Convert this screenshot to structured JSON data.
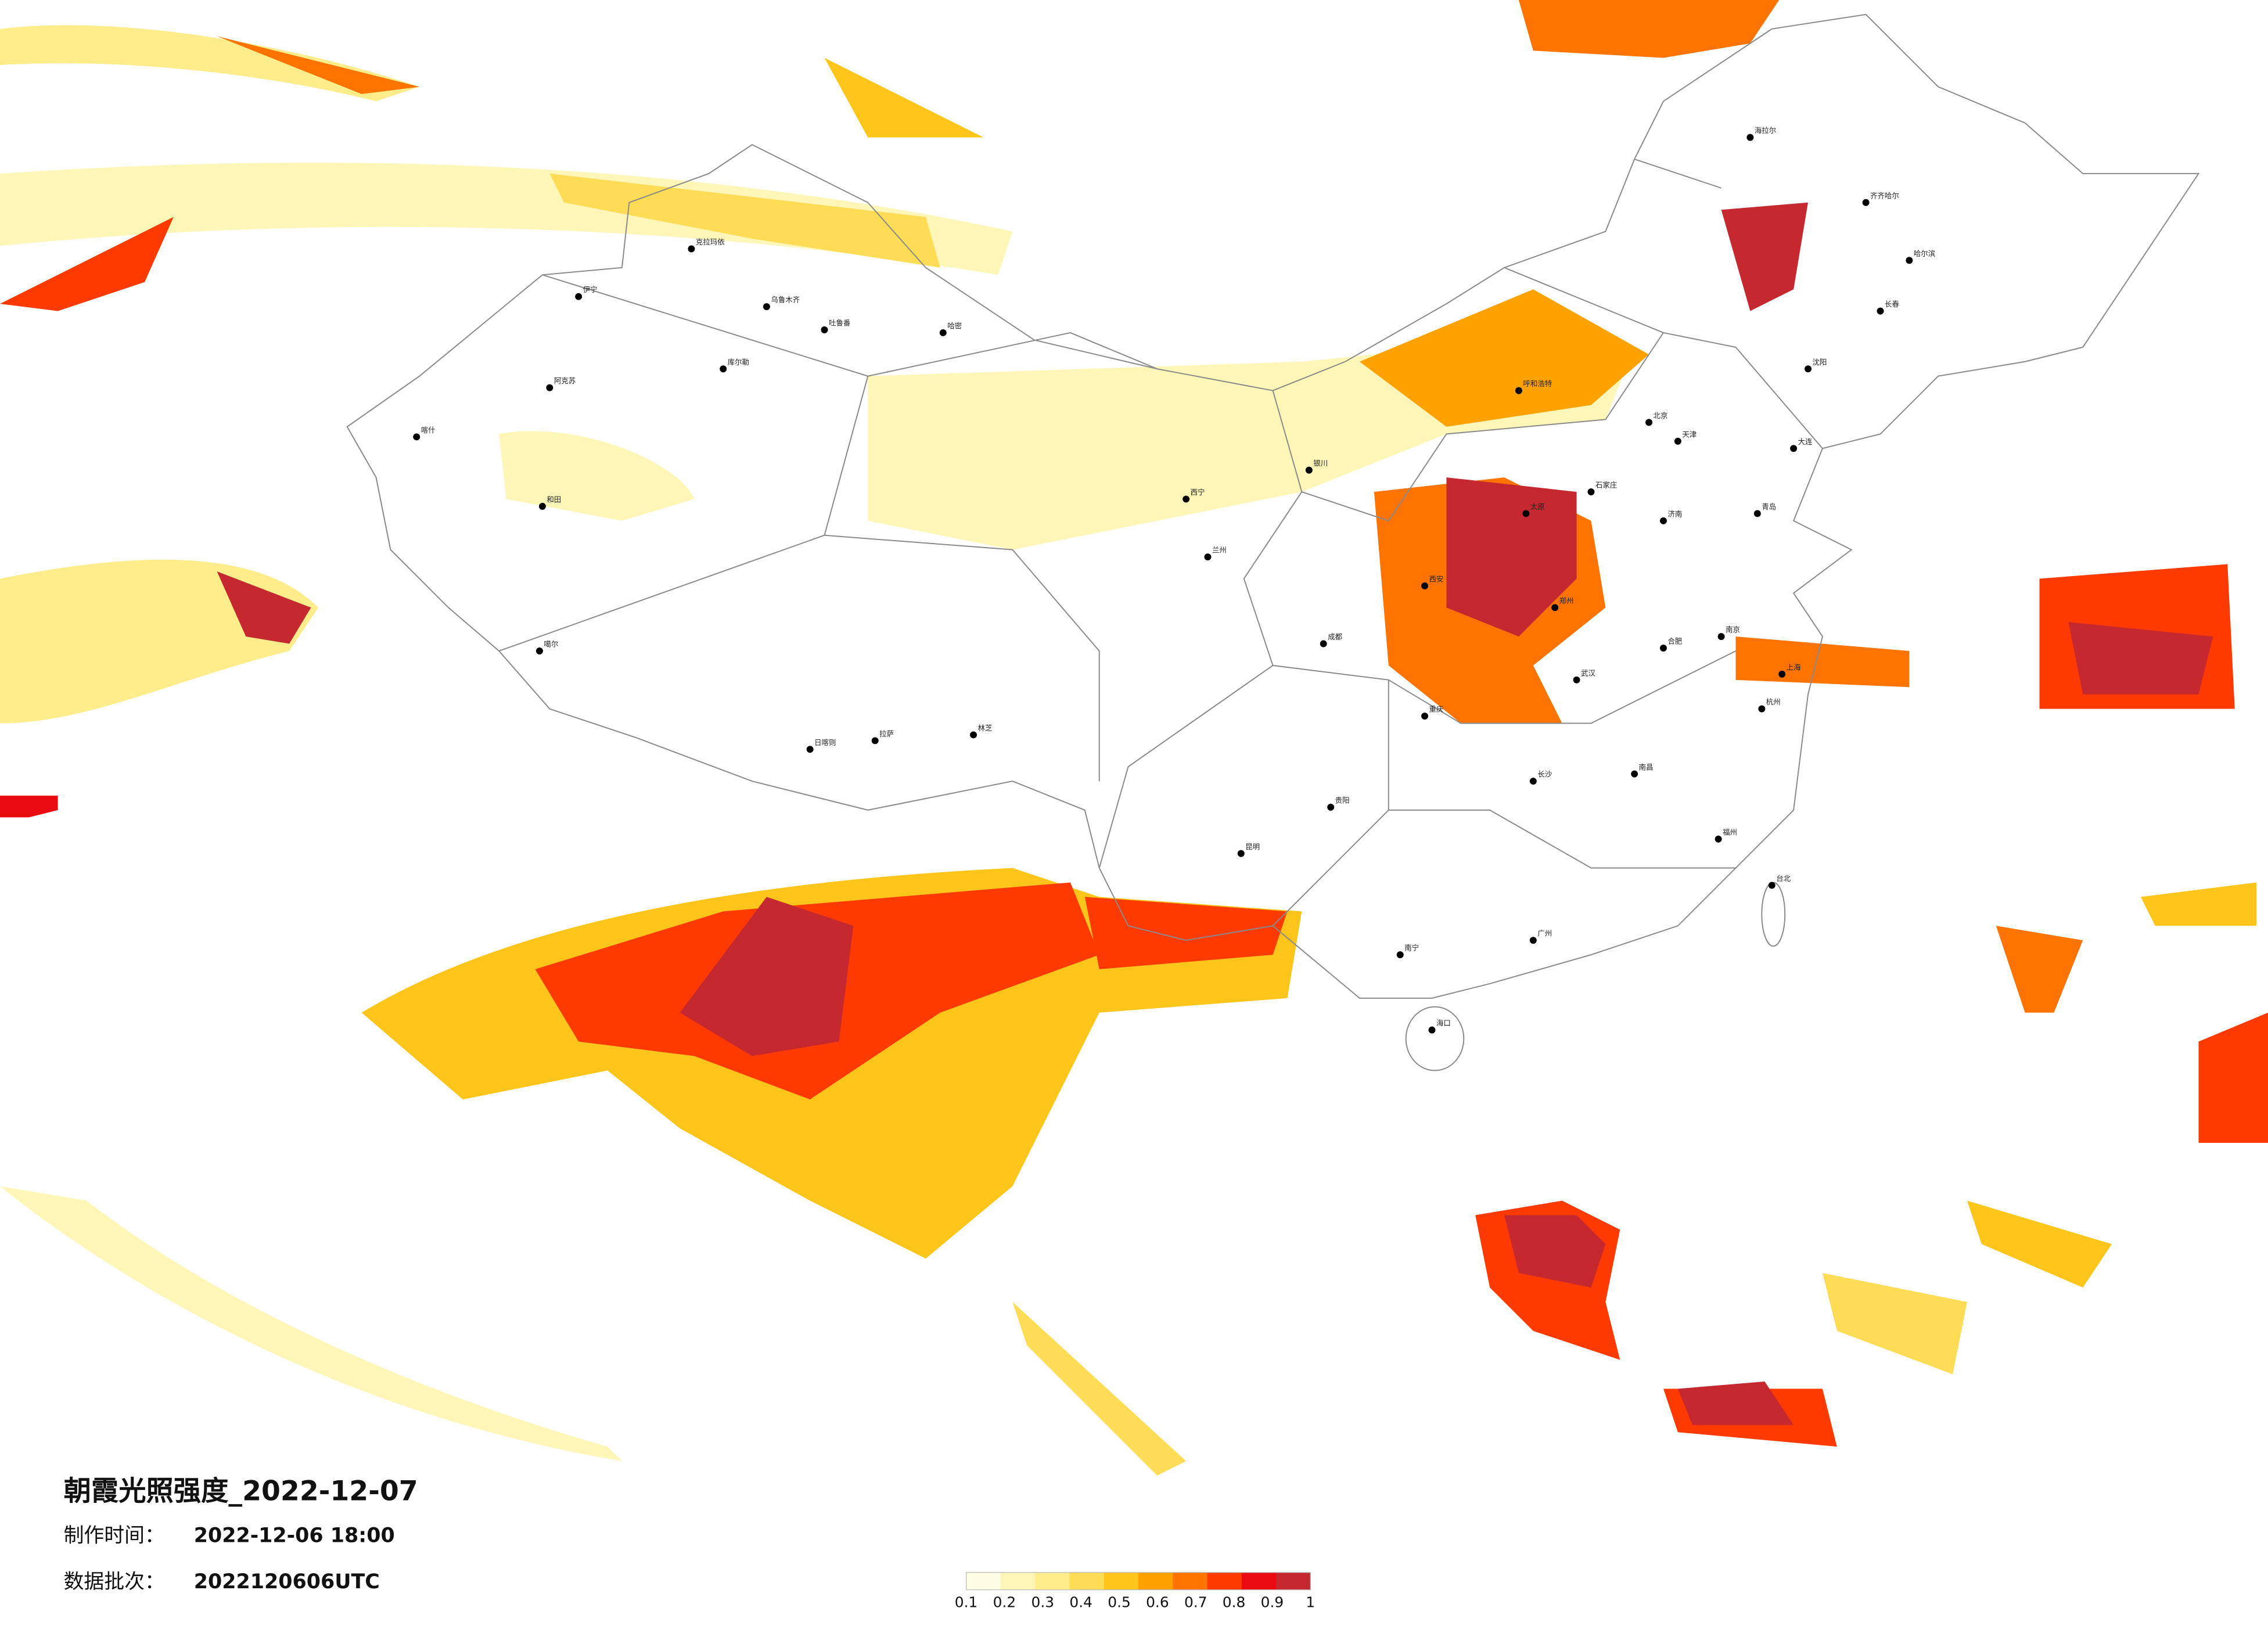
{
  "title": "朝霞光照强度_2022-12-07",
  "production_time": {
    "label": "制作时间：",
    "value": "2022-12-06 18:00"
  },
  "data_batch": {
    "label": "数据批次：",
    "value": "2022120606UTC"
  },
  "legend": {
    "colors": [
      "#fffde3",
      "#fff6b8",
      "#ffec8a",
      "#ffdc55",
      "#ffc51a",
      "#ffa200",
      "#ff7400",
      "#ff3a00",
      "#ea0a12",
      "#c62830"
    ],
    "ticks": [
      0.1,
      0.2,
      0.3,
      0.4,
      0.5,
      0.6,
      0.7,
      0.8,
      0.9,
      1
    ]
  },
  "cities": [
    "伊宁",
    "克拉玛依",
    "乌鲁木齐",
    "吐鲁番",
    "哈密",
    "库尔勒",
    "阿克苏",
    "喀什",
    "和田",
    "噶尔",
    "日喀则",
    "拉萨",
    "林芝",
    "西宁",
    "兰州",
    "银川",
    "呼和浩特",
    "北京",
    "天津",
    "石家庄",
    "太原",
    "济南",
    "郑州",
    "西安",
    "成都",
    "重庆",
    "武汉",
    "长沙",
    "南京",
    "上海",
    "杭州",
    "合肥",
    "南昌",
    "福州",
    "台北",
    "广州",
    "南宁",
    "海口",
    "昆明",
    "贵阳",
    "沈阳",
    "长春",
    "哈尔滨",
    "齐齐哈尔",
    "海拉尔",
    "大连",
    "青岛"
  ]
}
